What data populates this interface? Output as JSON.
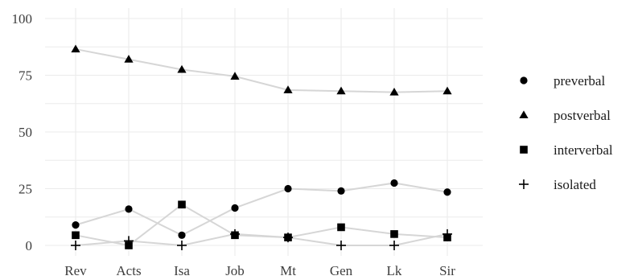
{
  "chart_data": {
    "type": "line",
    "categories": [
      "Rev",
      "Acts",
      "Isa",
      "Job",
      "Mt",
      "Gen",
      "Lk",
      "Sir"
    ],
    "ylim": [
      0,
      100
    ],
    "yticks": [
      0,
      25,
      50,
      75,
      100
    ],
    "grid": true,
    "legend_position": "right",
    "line_color": "#d6d6d6",
    "marker_color": "#000000",
    "series": [
      {
        "name": "preverbal",
        "marker": "circle",
        "values": [
          9,
          16,
          4.5,
          16.5,
          25,
          24,
          27.5,
          23.5
        ]
      },
      {
        "name": "postverbal",
        "marker": "triangle",
        "values": [
          86.5,
          82,
          77.5,
          74.5,
          68.5,
          68,
          67.5,
          68
        ]
      },
      {
        "name": "interverbal",
        "marker": "square",
        "values": [
          4.5,
          0,
          18,
          4.5,
          3.5,
          8,
          5,
          3.5
        ]
      },
      {
        "name": "isolated",
        "marker": "plus",
        "values": [
          0,
          2,
          0,
          5,
          3.5,
          0,
          0,
          5
        ]
      }
    ]
  }
}
